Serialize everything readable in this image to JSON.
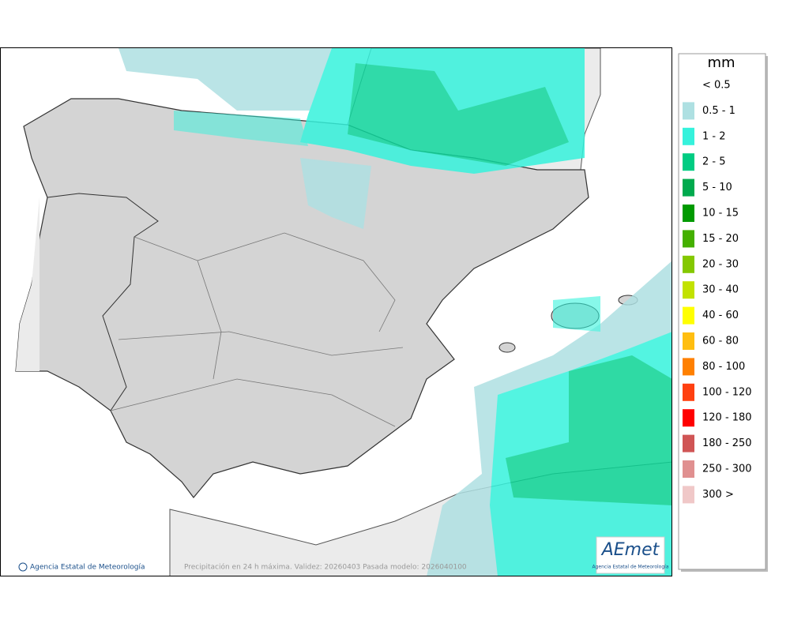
{
  "legend": {
    "title": "mm",
    "entries": [
      {
        "label": "< 0.5",
        "color": "#ffffff"
      },
      {
        "label": "0.5 - 1",
        "color": "#aee0e2"
      },
      {
        "label": "1 - 2",
        "color": "#35f2dc"
      },
      {
        "label": "2 - 5",
        "color": "#00cc82"
      },
      {
        "label": "5 - 10",
        "color": "#00aa4e"
      },
      {
        "label": "10 - 15",
        "color": "#009a00"
      },
      {
        "label": "15 - 20",
        "color": "#44b000"
      },
      {
        "label": "20 - 30",
        "color": "#84c800"
      },
      {
        "label": "30 - 40",
        "color": "#c2e200"
      },
      {
        "label": "40 - 60",
        "color": "#ffff00"
      },
      {
        "label": "60 - 80",
        "color": "#ffbe10"
      },
      {
        "label": "80 - 100",
        "color": "#ff8000"
      },
      {
        "label": "100 - 120",
        "color": "#ff4010"
      },
      {
        "label": "120 - 180",
        "color": "#ff0000"
      },
      {
        "label": "180 - 250",
        "color": "#d05555"
      },
      {
        "label": "250 - 300",
        "color": "#e09090"
      },
      {
        "label": "300 >",
        "color": "#f0c8c8"
      }
    ]
  },
  "footer": {
    "credit": "Agencia Estatal de Meteorología",
    "caption": "Precipitación en 24 h máxima. Validez: 20260403 Pasada modelo: 2026040100"
  },
  "logo": {
    "name": "AEmet",
    "subtitle": "Agencia Estatal de Meteorología"
  }
}
